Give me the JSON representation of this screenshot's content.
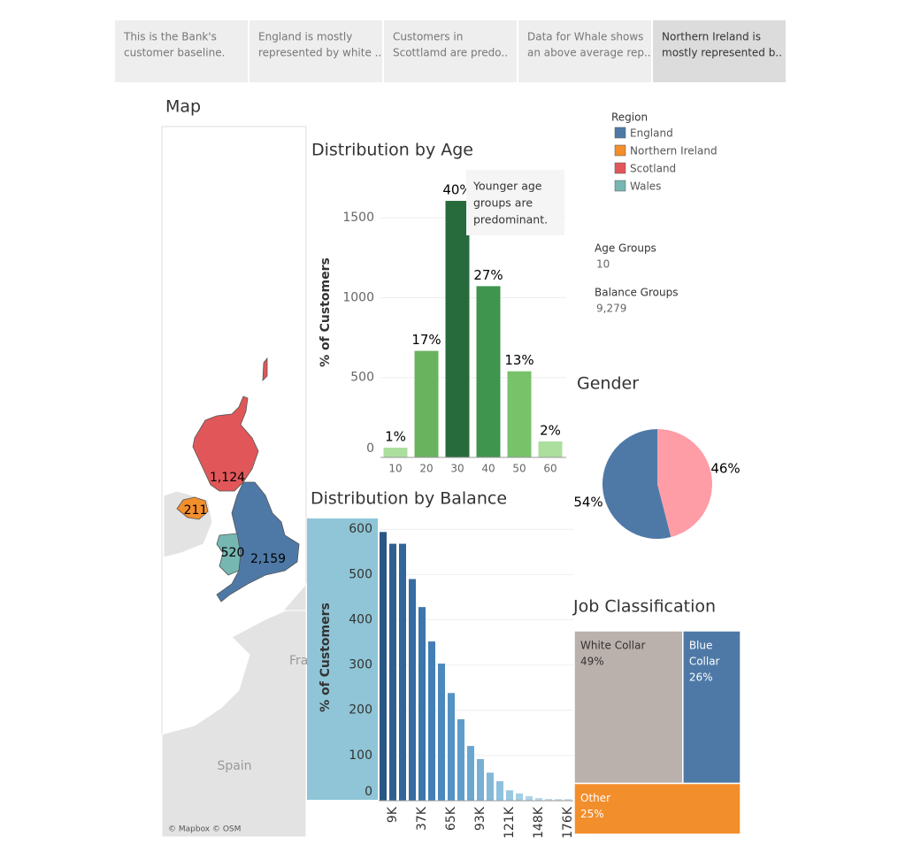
{
  "story_points": [
    [
      "This is the Bank's",
      "customer baseline."
    ],
    [
      "England is mostly",
      "represented by white .."
    ],
    [
      "Customers in",
      "Scottlamd are predo.."
    ],
    [
      "Data for Whale shows",
      "an above average rep.."
    ],
    [
      "Northern Ireland is",
      "mostly represented b.."
    ]
  ],
  "parameters": [
    {
      "label": "Age Groups",
      "value": "10"
    },
    {
      "label": "Balance Groups",
      "value": "9,279"
    }
  ],
  "chart_data": [
    {
      "type": "map",
      "title": "Map",
      "legend_title": "Region",
      "categories": [
        "England",
        "Northern Ireland",
        "Scotland",
        "Wales"
      ],
      "values": [
        2159,
        211,
        1124,
        520
      ],
      "value_labels": [
        "2,159",
        "211",
        "1,124",
        "520"
      ],
      "colors": [
        "#4e79a7",
        "#f28e2b",
        "#e15759",
        "#76b7b2"
      ],
      "place_labels": [
        "Fra",
        "Spain"
      ],
      "attribution": "© Mapbox © OSM"
    },
    {
      "type": "bar",
      "title": "Distribution by Age",
      "y_label": "% of Customers",
      "categories": [
        "10",
        "20",
        "30",
        "40",
        "50",
        "60"
      ],
      "values": [
        61,
        667,
        1606,
        1072,
        539,
        100
      ],
      "percent_labels": [
        "1%",
        "17%",
        "40%",
        "27%",
        "13%",
        "2%"
      ],
      "colors": [
        "#acdf9e",
        "#6ab35e",
        "#276b3c",
        "#3f944e",
        "#78c26a",
        "#acdf9e"
      ],
      "ylim": [
        0,
        1800
      ],
      "yticks": [
        0,
        500,
        1000,
        1500
      ],
      "grid": true,
      "annotation": [
        "Younger age",
        "groups are",
        "predominant."
      ]
    },
    {
      "type": "bar",
      "title": "Distribution by Balance",
      "y_label": "% of Customers",
      "categories": [
        null,
        "9K",
        null,
        null,
        "37K",
        null,
        null,
        "65K",
        null,
        null,
        "93K",
        null,
        null,
        "121K",
        null,
        null,
        "148K",
        null,
        null,
        "176K"
      ],
      "values": [
        594,
        568,
        568,
        490,
        428,
        352,
        303,
        238,
        180,
        121,
        92,
        62,
        43,
        23,
        16,
        10,
        6,
        4,
        4,
        4
      ],
      "colors": [
        "#2a5783",
        "#2f5f8f",
        "#32659a",
        "#376da2",
        "#3c76ab",
        "#437fb4",
        "#4b88bd",
        "#5492c4",
        "#5f9cca",
        "#6ba6d0",
        "#77afd5",
        "#83b8d9",
        "#8fc0dd",
        "#9ac8e1",
        "#a4cee4",
        "#aed3e7",
        "#b6d8ea",
        "#bedcec",
        "#c5e0ee",
        "#cbe3f0"
      ],
      "ylim": [
        0,
        620
      ],
      "yticks": [
        0,
        100,
        200,
        300,
        400,
        500,
        600
      ],
      "grid": true
    },
    {
      "type": "pie",
      "title": "Gender",
      "values": [
        54,
        46
      ],
      "value_labels": [
        "54%",
        "46%"
      ],
      "colors": [
        "#4e79a7",
        "#ff9da7"
      ]
    },
    {
      "type": "treemap",
      "title": "Job Classification",
      "categories": [
        [
          "White Collar"
        ],
        [
          "Blue",
          "Collar"
        ],
        [
          "Other"
        ]
      ],
      "values": [
        49,
        26,
        25
      ],
      "value_labels": [
        "49%",
        "26%",
        "25%"
      ],
      "colors": [
        "#bab0ac",
        "#4e79a7",
        "#f28e2b"
      ]
    }
  ]
}
